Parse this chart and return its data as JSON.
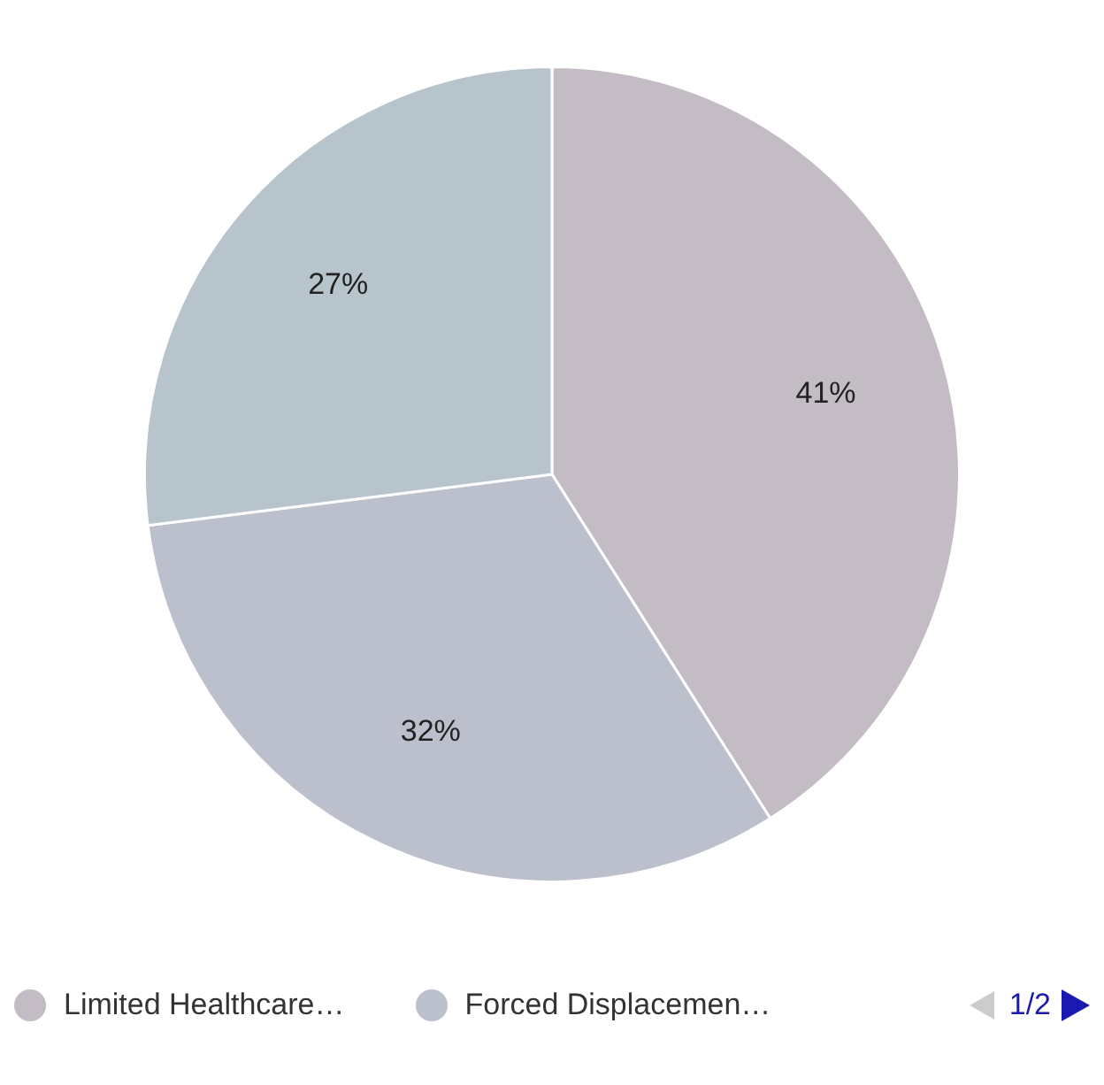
{
  "chart_data": {
    "type": "pie",
    "categories": [
      "Limited Healthcare…",
      "Forced Displacemen…",
      null
    ],
    "values": [
      41,
      32,
      27
    ],
    "colors": [
      "#c4bcc4",
      "#bcc0cc",
      "#b8c4cc"
    ],
    "value_labels": [
      "41%",
      "32%",
      "27%"
    ],
    "legend": "bottom",
    "annotations": [
      "1/2"
    ]
  }
}
